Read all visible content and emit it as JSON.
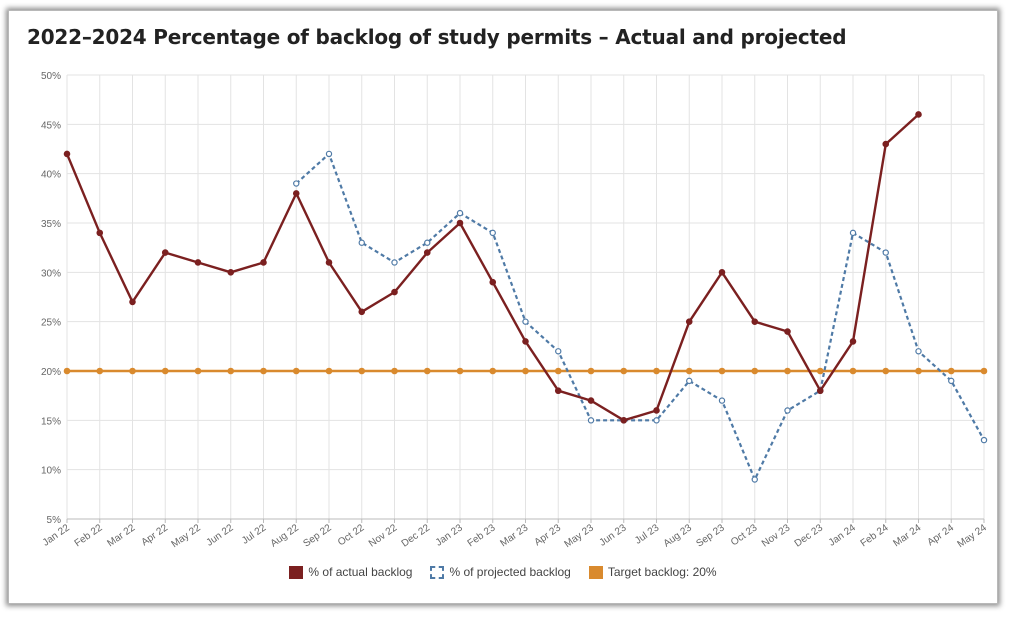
{
  "chart_data": {
    "type": "line",
    "title": "2022–2024 Percentage of backlog of study permits – Actual and projected",
    "xlabel": "",
    "ylabel": "",
    "ylim": [
      5,
      50
    ],
    "yticks": [
      "5%",
      "10%",
      "15%",
      "20%",
      "25%",
      "30%",
      "35%",
      "40%",
      "45%",
      "50%"
    ],
    "yticks_values": [
      5,
      10,
      15,
      20,
      25,
      30,
      35,
      40,
      45,
      50
    ],
    "grid": true,
    "legend_position": "bottom-center",
    "categories": [
      "Jan 22",
      "Feb 22",
      "Mar 22",
      "Apr 22",
      "May 22",
      "Jun 22",
      "Jul 22",
      "Aug 22",
      "Sep 22",
      "Oct 22",
      "Nov 22",
      "Dec 22",
      "Jan 23",
      "Feb 23",
      "Mar 23",
      "Apr 23",
      "May 23",
      "Jun 23",
      "Jul 23",
      "Aug 23",
      "Sep 23",
      "Oct 23",
      "Nov 23",
      "Dec 23",
      "Jan 24",
      "Feb 24",
      "Mar 24",
      "Apr 24",
      "May 24"
    ],
    "series": [
      {
        "name": "% of actual backlog",
        "color": "#7b2020",
        "style": "solid",
        "values": [
          42,
          34,
          27,
          32,
          31,
          30,
          31,
          38,
          31,
          26,
          28,
          32,
          35,
          29,
          23,
          18,
          17,
          15,
          16,
          25,
          30,
          25,
          24,
          18,
          23,
          43,
          46,
          null,
          null
        ]
      },
      {
        "name": "% of projected backlog",
        "color": "#4f7aa6",
        "style": "dashed",
        "values": [
          null,
          null,
          null,
          null,
          null,
          null,
          null,
          39,
          42,
          33,
          31,
          33,
          36,
          34,
          25,
          22,
          15,
          15,
          15,
          19,
          17,
          9,
          16,
          18,
          34,
          32,
          22,
          19,
          13
        ]
      },
      {
        "name": "Target backlog: 20%",
        "color": "#d98a2e",
        "style": "solid",
        "values": [
          20,
          20,
          20,
          20,
          20,
          20,
          20,
          20,
          20,
          20,
          20,
          20,
          20,
          20,
          20,
          20,
          20,
          20,
          20,
          20,
          20,
          20,
          20,
          20,
          20,
          20,
          20,
          20,
          20
        ]
      }
    ]
  }
}
